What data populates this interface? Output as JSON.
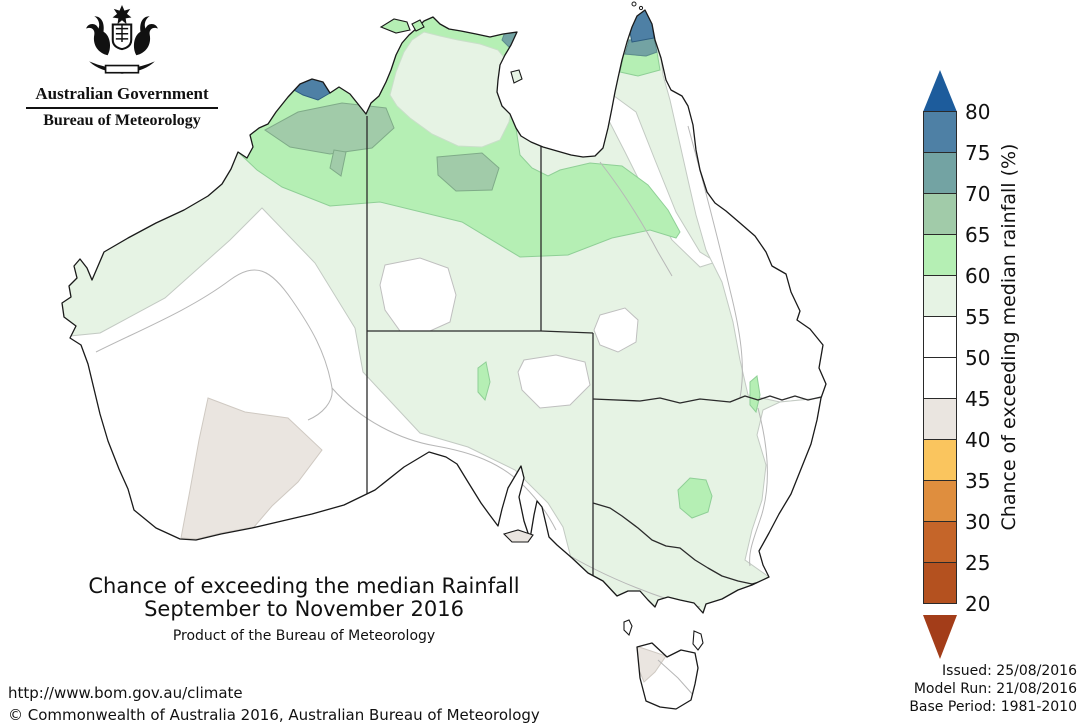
{
  "logo": {
    "government": "Australian Government",
    "bureau": "Bureau of Meteorology",
    "crest_icon": "australian-coat-of-arms"
  },
  "title": {
    "line1": "Chance of exceeding the median Rainfall",
    "line2": "September to November 2016",
    "line3": "Product of the Bureau of Meteorology"
  },
  "legend": {
    "axis_label": "Chance of exceeding median rainfall (%)",
    "ticks": [
      "80",
      "75",
      "70",
      "65",
      "60",
      "55",
      "50",
      "45",
      "40",
      "35",
      "30",
      "25",
      "20"
    ],
    "segments": [
      {
        "range": "above 80",
        "color": "#1d5c9c",
        "shape": "up-arrow"
      },
      {
        "range": "75-80",
        "color": "#4e80a5"
      },
      {
        "range": "70-75",
        "color": "#73a3a3"
      },
      {
        "range": "65-70",
        "color": "#a1cba9"
      },
      {
        "range": "60-65",
        "color": "#b5efb4"
      },
      {
        "range": "55-60",
        "color": "#e6f3e4"
      },
      {
        "range": "50-55",
        "color": "#ffffff"
      },
      {
        "range": "45-50",
        "color": "#ffffff"
      },
      {
        "range": "40-45",
        "color": "#eae5e0"
      },
      {
        "range": "35-40",
        "color": "#fac55e"
      },
      {
        "range": "30-35",
        "color": "#df8e3e"
      },
      {
        "range": "25-30",
        "color": "#c56529"
      },
      {
        "range": "20-25",
        "color": "#b4511f"
      },
      {
        "range": "below 20",
        "color": "#a33d19",
        "shape": "down-arrow"
      }
    ]
  },
  "footer": {
    "url": "http://www.bom.gov.au/climate",
    "copyright": "© Commonwealth of Australia 2016, Australian Bureau of Meteorology"
  },
  "issue_info": {
    "issued": "Issued: 25/08/2016",
    "model_run": "Model Run: 21/08/2016",
    "base_period": "Base Period: 1981-2010"
  },
  "chart_data": {
    "type": "heatmap",
    "subtype": "filled-contour probability map of Australia",
    "title": "Chance of exceeding the median Rainfall",
    "period": "September to November 2016",
    "colorbar_label": "Chance of exceeding median rainfall (%)",
    "colorbar_range": [
      20,
      80
    ],
    "colorbar_step": 5,
    "regions": [
      {
        "area": "Cape York Peninsula tip (QLD)",
        "value_pct": "75-80"
      },
      {
        "area": "Cape York Peninsula upper bands (QLD)",
        "value_pct": "70-75 then 60-65"
      },
      {
        "area": "NE Arnhem Land / Gove tip (NT)",
        "value_pct": "70-75"
      },
      {
        "area": "NW Kimberley coast (WA)",
        "value_pct": "75-80"
      },
      {
        "area": "Kimberley inland / Victoria River district (WA-NT)",
        "value_pct": "65-70"
      },
      {
        "area": "Central NT patch near Tennant Creek",
        "value_pct": "65-70"
      },
      {
        "area": "Northern tropics band (Kimberley, Top End coast, south of Gulf)",
        "value_pct": "60-65"
      },
      {
        "area": "Inland NSW blob and small SA/QLD-border slivers",
        "value_pct": "60-65"
      },
      {
        "area": "Most of northern and eastern interior of the continent",
        "value_pct": "55-60"
      },
      {
        "area": "Southwest and southern WA, SA gulfs, QLD-NSW east coast, coastal Victoria, Tasmania",
        "value_pct": "45-55"
      },
      {
        "area": "Southern interior of WA, Kangaroo Island, NW Tasmania, small VIC coast patch",
        "value_pct": "40-45"
      }
    ]
  }
}
